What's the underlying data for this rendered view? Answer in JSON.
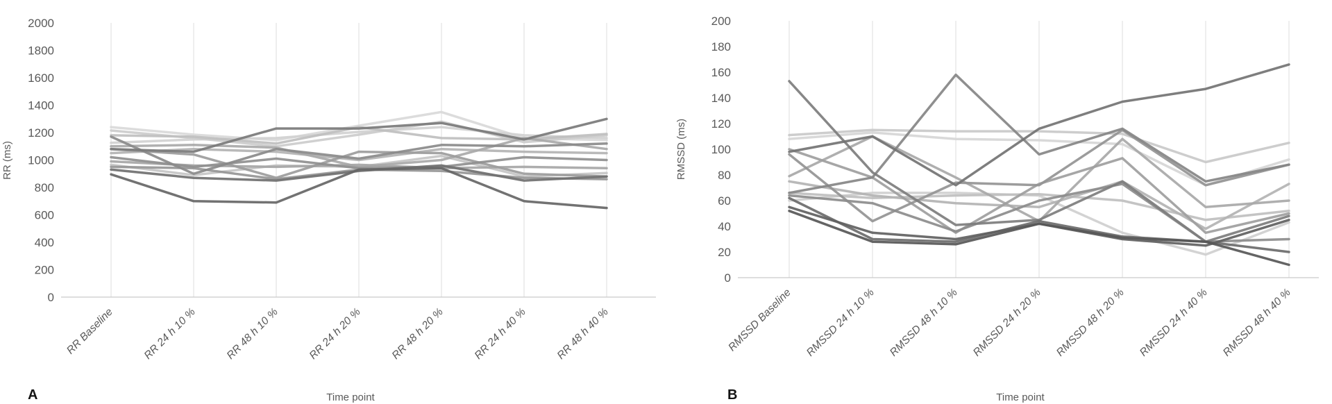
{
  "page": {
    "background": "#ffffff"
  },
  "styles": {
    "tick_label_color": "#595959",
    "axis_line_color": "#c9c9c9",
    "grid_line_color": "#dcdcdc",
    "panel_label_color": "#141414"
  },
  "chart_data": [
    {
      "panel_label": "A",
      "type": "line",
      "title": "",
      "xlabel": "Time point",
      "ylabel": "RR (ms)",
      "ylim": [
        0,
        2000
      ],
      "ytick_step": 200,
      "grid": "vertical-only",
      "legend": "none",
      "categories": [
        "RR Baseline",
        "RR 24 h 10 %",
        "RR 48 h 10 %",
        "RR 24 h 20 %",
        "RR 48 h 20 %",
        "RR 24 h 40 %",
        "RR 48 h 40 %"
      ],
      "series": [
        {
          "id": "subject-1",
          "color": "#d9d9d9",
          "values": [
            1240,
            1185,
            1145,
            1250,
            1350,
            1160,
            1145
          ]
        },
        {
          "id": "subject-2",
          "color": "#d1d1d1",
          "values": [
            1125,
            1150,
            1160,
            1205,
            1240,
            1180,
            1160
          ]
        },
        {
          "id": "subject-3",
          "color": "#cccccc",
          "values": [
            1215,
            1160,
            1100,
            1185,
            1280,
            1130,
            1180
          ]
        },
        {
          "id": "subject-4",
          "color": "#c6c6c6",
          "values": [
            965,
            890,
            960,
            950,
            1030,
            880,
            905
          ]
        },
        {
          "id": "subject-5",
          "color": "#bfbfbf",
          "values": [
            1180,
            1170,
            1120,
            1240,
            1160,
            1150,
            1190
          ]
        },
        {
          "id": "subject-6",
          "color": "#b3b3b3",
          "values": [
            1050,
            1080,
            1060,
            1000,
            1080,
            1060,
            1050
          ]
        },
        {
          "id": "subject-7",
          "color": "#a9a9a9",
          "values": [
            1100,
            1110,
            1090,
            950,
            1000,
            1160,
            1080
          ]
        },
        {
          "id": "subject-8",
          "color": "#a6a6a6",
          "values": [
            990,
            960,
            950,
            965,
            940,
            950,
            940
          ]
        },
        {
          "id": "subject-9",
          "color": "#9c9c9c",
          "values": [
            1080,
            1040,
            870,
            1060,
            1050,
            900,
            880
          ]
        },
        {
          "id": "subject-10",
          "color": "#969696",
          "values": [
            950,
            940,
            860,
            930,
            920,
            870,
            860
          ]
        },
        {
          "id": "subject-11",
          "color": "#8f8f8f",
          "values": [
            1020,
            950,
            1010,
            940,
            950,
            1020,
            1000
          ]
        },
        {
          "id": "subject-12",
          "color": "#8a8a8a",
          "values": [
            1170,
            900,
            1080,
            1010,
            1110,
            1100,
            1120
          ]
        },
        {
          "id": "subject-13",
          "color": "#7a7a7a",
          "values": [
            1080,
            1060,
            1230,
            1230,
            1270,
            1150,
            1300
          ]
        },
        {
          "id": "subject-14",
          "color": "#707070",
          "values": [
            930,
            870,
            850,
            920,
            960,
            850,
            880
          ]
        },
        {
          "id": "subject-15",
          "color": "#666666",
          "values": [
            895,
            700,
            690,
            930,
            940,
            700,
            650
          ]
        }
      ]
    },
    {
      "panel_label": "B",
      "type": "line",
      "title": "",
      "xlabel": "Time point",
      "ylabel": "RMSSD (ms)",
      "ylim": [
        0,
        200
      ],
      "ytick_step": 20,
      "grid": "vertical-only",
      "legend": "none",
      "categories": [
        "RMSSD Baseline",
        "RMSSD 24 h 10 %",
        "RMSSD 48 h 10 %",
        "RMSSD 24 h 20 %",
        "RMSSD 48 h 20 %",
        "RMSSD 24 h 40 %",
        "RMSSD 48 h 40 %"
      ],
      "series": [
        {
          "id": "subject-1",
          "color": "#d6d6d6",
          "values": [
            108,
            113,
            108,
            107,
            104,
            72,
            92
          ]
        },
        {
          "id": "subject-2",
          "color": "#cfcfcf",
          "values": [
            60,
            66,
            66,
            64,
            35,
            18,
            43
          ]
        },
        {
          "id": "subject-3",
          "color": "#c9c9c9",
          "values": [
            111,
            115,
            114,
            114,
            112,
            90,
            105
          ]
        },
        {
          "id": "subject-4",
          "color": "#bfbfbf",
          "values": [
            66,
            62,
            64,
            65,
            60,
            45,
            52
          ]
        },
        {
          "id": "subject-5",
          "color": "#b3b3b3",
          "values": [
            75,
            64,
            58,
            55,
            75,
            38,
            73
          ]
        },
        {
          "id": "subject-6",
          "color": "#a8a8a8",
          "values": [
            79,
            110,
            78,
            44,
            108,
            55,
            60
          ]
        },
        {
          "id": "subject-7",
          "color": "#9e9e9e",
          "values": [
            100,
            78,
            35,
            73,
            93,
            35,
            50
          ]
        },
        {
          "id": "subject-8",
          "color": "#949494",
          "values": [
            96,
            44,
            74,
            72,
            115,
            72,
            88
          ]
        },
        {
          "id": "subject-9",
          "color": "#8c8c8c",
          "values": [
            64,
            58,
            36,
            60,
            73,
            28,
            30
          ]
        },
        {
          "id": "subject-10",
          "color": "#858585",
          "values": [
            66,
            78,
            158,
            96,
            116,
            75,
            88
          ]
        },
        {
          "id": "subject-11",
          "color": "#7d7d7d",
          "values": [
            153,
            82,
            41,
            45,
            75,
            28,
            48
          ]
        },
        {
          "id": "subject-12",
          "color": "#737373",
          "values": [
            98,
            110,
            72,
            116,
            137,
            147,
            166
          ]
        },
        {
          "id": "subject-13",
          "color": "#6b6b6b",
          "values": [
            62,
            30,
            28,
            44,
            32,
            28,
            20
          ]
        },
        {
          "id": "subject-14",
          "color": "#616161",
          "values": [
            55,
            35,
            30,
            42,
            30,
            25,
            45
          ]
        },
        {
          "id": "subject-15",
          "color": "#575757",
          "values": [
            52,
            28,
            26,
            42,
            31,
            28,
            10
          ]
        }
      ]
    }
  ]
}
